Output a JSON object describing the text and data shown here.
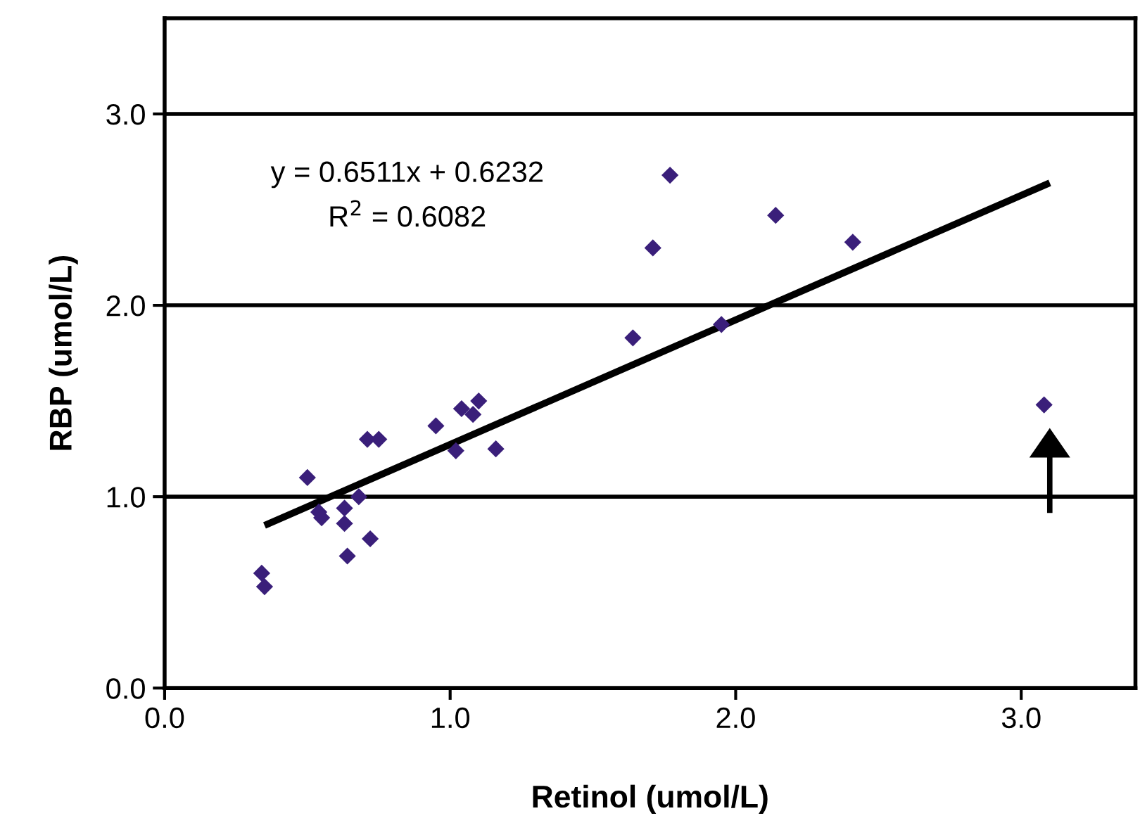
{
  "chart_data": {
    "type": "scatter",
    "xlabel": "Retinol (umol/L)",
    "ylabel": "RBP (umol/L)",
    "xlim": [
      0,
      3.4
    ],
    "ylim": [
      0,
      3.5
    ],
    "xticks": [
      {
        "value": 0,
        "label": "0.0"
      },
      {
        "value": 1,
        "label": "1.0"
      },
      {
        "value": 2,
        "label": "2.0"
      },
      {
        "value": 3,
        "label": "3.0"
      }
    ],
    "yticks": [
      {
        "value": 0,
        "label": "0.0"
      },
      {
        "value": 1,
        "label": "1.0"
      },
      {
        "value": 2,
        "label": "2.0"
      },
      {
        "value": 3,
        "label": "3.0"
      }
    ],
    "grid": "y",
    "annotations": [
      "y = 0.6511x + 0.6232",
      "R$^{2}$ = 0.6082"
    ],
    "series": [
      {
        "marker": "diamond",
        "color": "#3a1f7a",
        "x": [
          0.34,
          0.35,
          0.5,
          0.54,
          0.55,
          0.63,
          0.63,
          0.68,
          0.64,
          0.72,
          0.71,
          0.75,
          0.95,
          1.02,
          1.04,
          1.08,
          1.1,
          1.16,
          1.77,
          1.71,
          2.14,
          2.41,
          1.64,
          1.95,
          3.08
        ],
        "values": [
          0.6,
          0.53,
          1.1,
          0.92,
          0.89,
          0.94,
          0.86,
          1.0,
          0.69,
          0.78,
          1.3,
          1.3,
          1.37,
          1.24,
          1.46,
          1.43,
          1.5,
          1.25,
          2.68,
          2.3,
          2.47,
          2.33,
          1.83,
          1.9,
          1.48
        ]
      },
      {
        "type": "line",
        "marker": "none",
        "color": "#000000",
        "x": [
          0.35,
          3.1
        ],
        "values": [
          0.85,
          2.64
        ]
      }
    ]
  }
}
